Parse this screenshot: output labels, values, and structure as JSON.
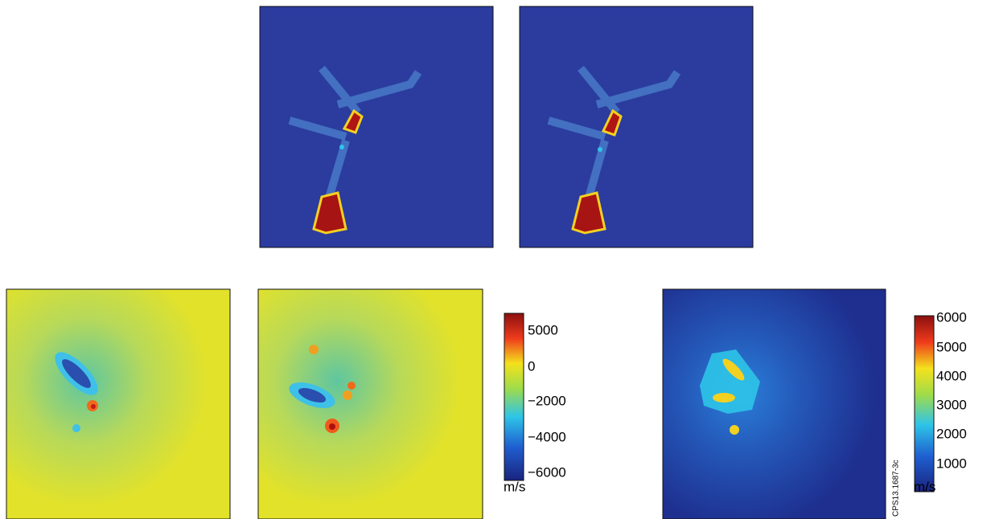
{
  "colorbars": [
    {
      "ticks": [
        "5000",
        "0",
        "−2000",
        "−4000",
        "−6000"
      ],
      "unit": "m/s"
    },
    {
      "ticks": [
        "6000",
        "5000",
        "4000",
        "3000",
        "2000",
        "1000"
      ],
      "unit": "m/s"
    }
  ],
  "figure_id": "CPS13.1687-3c"
}
